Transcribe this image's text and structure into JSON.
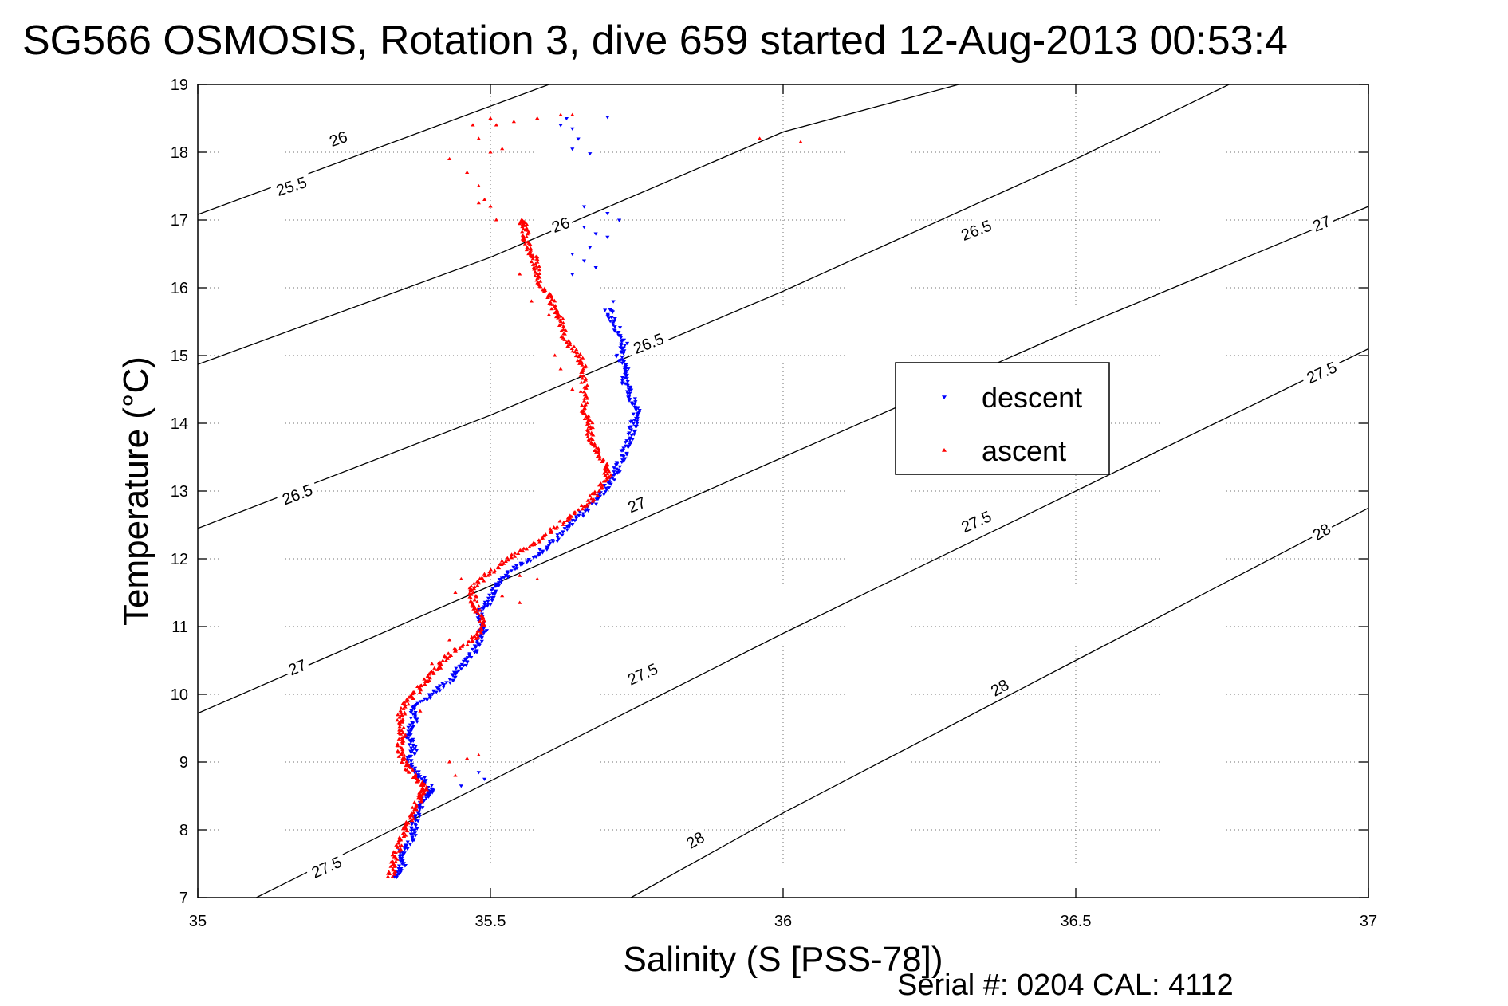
{
  "chart_data": {
    "type": "scatter",
    "title": "SG566 OSMOSIS, Rotation 3, dive 659 started 12-Aug-2013 00:53:4",
    "xlabel": "Salinity (S [PSS-78])",
    "ylabel": "Temperature (°C)",
    "xlim": [
      35,
      37
    ],
    "ylim": [
      7,
      19
    ],
    "xticks": [
      35,
      35.5,
      36,
      36.5,
      37
    ],
    "xtick_labels": [
      "35",
      "35.5",
      "36",
      "36.5",
      "37"
    ],
    "yticks": [
      7,
      8,
      9,
      10,
      11,
      12,
      13,
      14,
      15,
      16,
      17,
      18,
      19
    ],
    "ytick_labels": [
      "7",
      "8",
      "9",
      "10",
      "11",
      "12",
      "13",
      "14",
      "15",
      "16",
      "17",
      "18",
      "19"
    ],
    "grid": true,
    "legend_position": "center-right",
    "footer": "Serial #: 0204  CAL: 4112",
    "isopycnals": [
      {
        "label": "25.5",
        "points": [
          [
            35,
            17.08
          ],
          [
            35.6,
            19
          ]
        ]
      },
      {
        "label": "26",
        "points": [
          [
            35,
            14.87
          ],
          [
            35.5,
            16.45
          ],
          [
            36,
            18.3
          ],
          [
            36.3,
            19
          ]
        ]
      },
      {
        "label": "26.5",
        "points": [
          [
            35,
            12.45
          ],
          [
            35.5,
            14.12
          ],
          [
            36,
            15.95
          ],
          [
            36.5,
            17.9
          ],
          [
            37,
            20.0
          ]
        ]
      },
      {
        "label": "27",
        "points": [
          [
            35,
            9.72
          ],
          [
            35.5,
            11.6
          ],
          [
            36,
            13.5
          ],
          [
            36.5,
            15.4
          ],
          [
            37,
            17.2
          ]
        ]
      },
      {
        "label": "27.5",
        "points": [
          [
            35.1,
            7.0
          ],
          [
            35.5,
            8.72
          ],
          [
            36,
            10.9
          ],
          [
            36.5,
            13.0
          ],
          [
            37,
            15.1
          ]
        ]
      },
      {
        "label": "28",
        "points": [
          [
            35.74,
            7.0
          ],
          [
            36,
            8.25
          ],
          [
            36.5,
            10.5
          ],
          [
            37,
            12.75
          ]
        ]
      }
    ],
    "contour_labels": [
      {
        "text": "25.5",
        "x": 35.16,
        "y": 17.5
      },
      {
        "text": "26",
        "x": 35.24,
        "y": 18.2
      },
      {
        "text": "26",
        "x": 35.62,
        "y": 16.93
      },
      {
        "text": "26.5",
        "x": 35.17,
        "y": 12.95
      },
      {
        "text": "26.5",
        "x": 35.77,
        "y": 15.18
      },
      {
        "text": "26.5",
        "x": 36.33,
        "y": 16.85
      },
      {
        "text": "27",
        "x": 35.17,
        "y": 10.4
      },
      {
        "text": "27",
        "x": 35.75,
        "y": 12.8
      },
      {
        "text": "27",
        "x": 36.33,
        "y": 14.7
      },
      {
        "text": "27",
        "x": 36.92,
        "y": 16.95
      },
      {
        "text": "27.5",
        "x": 35.22,
        "y": 7.45
      },
      {
        "text": "27.5",
        "x": 35.76,
        "y": 10.3
      },
      {
        "text": "27.5",
        "x": 36.33,
        "y": 12.55
      },
      {
        "text": "27.5",
        "x": 36.92,
        "y": 14.75
      },
      {
        "text": "28",
        "x": 35.85,
        "y": 7.85
      },
      {
        "text": "28",
        "x": 36.37,
        "y": 10.1
      },
      {
        "text": "28",
        "x": 36.92,
        "y": 12.4
      }
    ],
    "series": [
      {
        "name": "descent",
        "color": "#0000ff",
        "marker": "triangle-down",
        "path": [
          [
            35.34,
            7.3
          ],
          [
            35.35,
            7.5
          ],
          [
            35.35,
            7.7
          ],
          [
            35.37,
            7.9
          ],
          [
            35.37,
            8.1
          ],
          [
            35.38,
            8.3
          ],
          [
            35.39,
            8.5
          ],
          [
            35.4,
            8.6
          ],
          [
            35.38,
            8.8
          ],
          [
            35.36,
            9.0
          ],
          [
            35.37,
            9.2
          ],
          [
            35.36,
            9.4
          ],
          [
            35.37,
            9.6
          ],
          [
            35.37,
            9.8
          ],
          [
            35.4,
            10.0
          ],
          [
            35.43,
            10.2
          ],
          [
            35.45,
            10.4
          ],
          [
            35.47,
            10.6
          ],
          [
            35.48,
            10.8
          ],
          [
            35.49,
            11.0
          ],
          [
            35.48,
            11.2
          ],
          [
            35.5,
            11.4
          ],
          [
            35.51,
            11.6
          ],
          [
            35.53,
            11.8
          ],
          [
            35.57,
            12.0
          ],
          [
            35.6,
            12.2
          ],
          [
            35.63,
            12.45
          ],
          [
            35.66,
            12.7
          ],
          [
            35.69,
            12.95
          ],
          [
            35.71,
            13.2
          ],
          [
            35.72,
            13.4
          ],
          [
            35.73,
            13.6
          ],
          [
            35.74,
            13.8
          ],
          [
            35.745,
            14.0
          ],
          [
            35.75,
            14.2
          ],
          [
            35.74,
            14.4
          ],
          [
            35.73,
            14.6
          ],
          [
            35.73,
            14.8
          ],
          [
            35.72,
            15.0
          ],
          [
            35.73,
            15.2
          ],
          [
            35.71,
            15.5
          ],
          [
            35.7,
            15.7
          ]
        ],
        "scatter": [
          [
            35.63,
            18.5
          ],
          [
            35.62,
            18.4
          ],
          [
            35.64,
            18.35
          ],
          [
            35.65,
            18.2
          ],
          [
            35.64,
            18.05
          ],
          [
            35.67,
            17.98
          ],
          [
            35.7,
            18.52
          ],
          [
            35.66,
            17.2
          ],
          [
            35.7,
            17.1
          ],
          [
            35.72,
            17.0
          ],
          [
            35.66,
            16.9
          ],
          [
            35.68,
            16.8
          ],
          [
            35.7,
            16.75
          ],
          [
            35.67,
            16.6
          ],
          [
            35.64,
            16.5
          ],
          [
            35.66,
            16.4
          ],
          [
            35.68,
            16.3
          ],
          [
            35.64,
            16.2
          ],
          [
            35.71,
            15.8
          ],
          [
            35.48,
            8.85
          ],
          [
            35.49,
            8.75
          ],
          [
            35.45,
            8.65
          ]
        ]
      },
      {
        "name": "ascent",
        "color": "#ff0000",
        "marker": "triangle-up",
        "path": [
          [
            35.33,
            7.3
          ],
          [
            35.335,
            7.5
          ],
          [
            35.34,
            7.7
          ],
          [
            35.35,
            7.9
          ],
          [
            35.36,
            8.1
          ],
          [
            35.37,
            8.3
          ],
          [
            35.38,
            8.5
          ],
          [
            35.39,
            8.6
          ],
          [
            35.37,
            8.8
          ],
          [
            35.35,
            9.0
          ],
          [
            35.345,
            9.2
          ],
          [
            35.35,
            9.4
          ],
          [
            35.345,
            9.6
          ],
          [
            35.35,
            9.8
          ],
          [
            35.37,
            10.0
          ],
          [
            35.39,
            10.2
          ],
          [
            35.41,
            10.4
          ],
          [
            35.43,
            10.6
          ],
          [
            35.47,
            10.8
          ],
          [
            35.49,
            11.0
          ],
          [
            35.48,
            11.2
          ],
          [
            35.47,
            11.4
          ],
          [
            35.47,
            11.6
          ],
          [
            35.5,
            11.8
          ],
          [
            35.53,
            12.0
          ],
          [
            35.57,
            12.2
          ],
          [
            35.61,
            12.45
          ],
          [
            35.65,
            12.7
          ],
          [
            35.68,
            12.95
          ],
          [
            35.7,
            13.2
          ],
          [
            35.7,
            13.35
          ],
          [
            35.68,
            13.6
          ],
          [
            35.67,
            13.8
          ],
          [
            35.67,
            14.0
          ],
          [
            35.66,
            14.2
          ],
          [
            35.66,
            14.5
          ],
          [
            35.66,
            14.8
          ],
          [
            35.65,
            15.0
          ],
          [
            35.63,
            15.2
          ],
          [
            35.62,
            15.5
          ],
          [
            35.61,
            15.7
          ],
          [
            35.6,
            15.9
          ],
          [
            35.58,
            16.1
          ],
          [
            35.58,
            16.3
          ],
          [
            35.57,
            16.5
          ],
          [
            35.56,
            16.7
          ],
          [
            35.56,
            16.9
          ],
          [
            35.55,
            17.0
          ]
        ],
        "scatter": [
          [
            35.5,
            18.5
          ],
          [
            35.51,
            18.4
          ],
          [
            35.54,
            18.45
          ],
          [
            35.58,
            18.5
          ],
          [
            35.62,
            18.55
          ],
          [
            35.64,
            18.55
          ],
          [
            35.47,
            18.4
          ],
          [
            35.48,
            18.2
          ],
          [
            35.5,
            18.0
          ],
          [
            35.52,
            18.05
          ],
          [
            35.43,
            17.9
          ],
          [
            35.46,
            17.7
          ],
          [
            35.48,
            17.5
          ],
          [
            35.49,
            17.3
          ],
          [
            35.5,
            17.2
          ],
          [
            35.48,
            17.25
          ],
          [
            35.51,
            17.0
          ],
          [
            35.56,
            16.85
          ],
          [
            35.58,
            16.45
          ],
          [
            35.55,
            16.2
          ],
          [
            35.57,
            15.8
          ],
          [
            35.6,
            15.6
          ],
          [
            35.61,
            15.0
          ],
          [
            35.62,
            14.8
          ],
          [
            35.64,
            14.5
          ],
          [
            35.96,
            18.2
          ],
          [
            36.03,
            18.15
          ],
          [
            35.55,
            11.75
          ],
          [
            35.58,
            11.7
          ],
          [
            35.52,
            11.45
          ],
          [
            35.55,
            11.35
          ],
          [
            35.45,
            11.7
          ],
          [
            35.44,
            11.5
          ],
          [
            35.43,
            10.8
          ],
          [
            35.4,
            10.45
          ],
          [
            35.38,
            9.75
          ],
          [
            35.43,
            9.0
          ],
          [
            35.46,
            9.05
          ],
          [
            35.48,
            9.1
          ],
          [
            35.44,
            8.8
          ]
        ]
      }
    ]
  }
}
